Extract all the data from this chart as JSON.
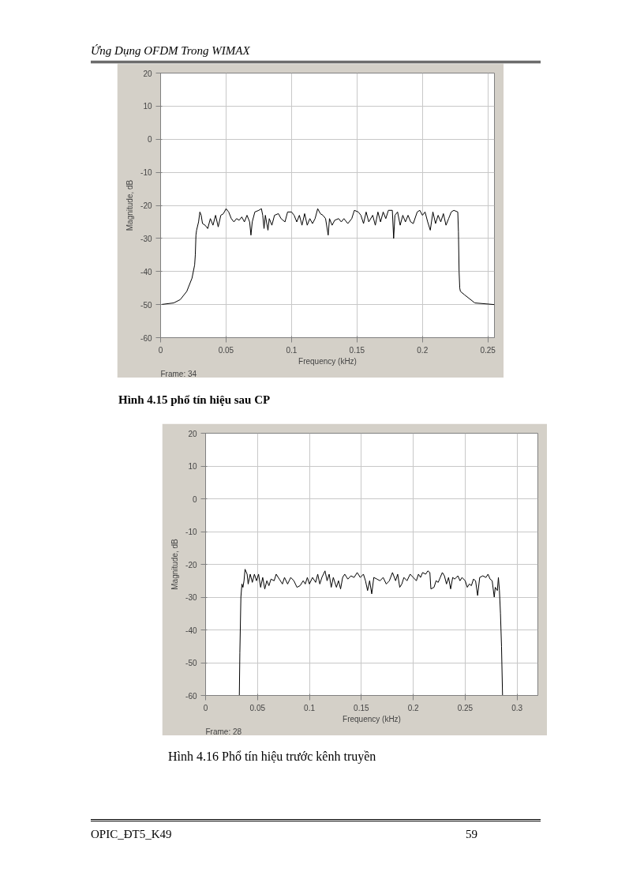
{
  "chart_data": [
    {
      "type": "line",
      "title": "Hình 4.15 phổ tín hiệu sau CP",
      "xlabel": "Frequency (kHz)",
      "ylabel": "Magnitude, dB",
      "annotations": [
        "Ứng Dụng OFDM Trong WIMAX",
        "Frame: 34"
      ],
      "xlim": [
        0,
        0.255
      ],
      "ylim": [
        -60,
        20
      ],
      "xticks": [
        0,
        0.05,
        0.1,
        0.15,
        0.2,
        0.25
      ],
      "yticks": [
        -60,
        -50,
        -40,
        -30,
        -20,
        -10,
        0,
        10,
        20
      ],
      "grid": true,
      "line_style": "solid",
      "series": [
        {
          "color": "#000000",
          "x": [
            0,
            0.01,
            0.015,
            0.02,
            0.024,
            0.026,
            0.0265,
            0.027,
            0.0275,
            0.029,
            0.03,
            0.031,
            0.032,
            0.034,
            0.036,
            0.038,
            0.04,
            0.042,
            0.044,
            0.046,
            0.048,
            0.05,
            0.052,
            0.054,
            0.056,
            0.058,
            0.06,
            0.062,
            0.064,
            0.066,
            0.068,
            0.069,
            0.07,
            0.072,
            0.075,
            0.077,
            0.078,
            0.079,
            0.08,
            0.082,
            0.083,
            0.085,
            0.087,
            0.09,
            0.092,
            0.095,
            0.097,
            0.1,
            0.102,
            0.104,
            0.106,
            0.108,
            0.11,
            0.112,
            0.114,
            0.116,
            0.118,
            0.12,
            0.122,
            0.124,
            0.126,
            0.128,
            0.129,
            0.131,
            0.133,
            0.136,
            0.138,
            0.14,
            0.143,
            0.146,
            0.148,
            0.151,
            0.153,
            0.155,
            0.157,
            0.159,
            0.162,
            0.164,
            0.166,
            0.168,
            0.17,
            0.172,
            0.174,
            0.177,
            0.178,
            0.179,
            0.181,
            0.183,
            0.185,
            0.187,
            0.189,
            0.191,
            0.193,
            0.196,
            0.198,
            0.2,
            0.202,
            0.204,
            0.206,
            0.208,
            0.21,
            0.212,
            0.214,
            0.216,
            0.218,
            0.22,
            0.222,
            0.224,
            0.227,
            0.2275,
            0.228,
            0.2285,
            0.229,
            0.232,
            0.24,
            0.255
          ],
          "values": [
            -50,
            -49.5,
            -48.5,
            -46,
            -42,
            -38,
            -35,
            -29,
            -27.5,
            -25,
            -22,
            -23,
            -25.5,
            -26,
            -27,
            -24,
            -26,
            -23,
            -26.5,
            -23,
            -22.5,
            -21,
            -22,
            -24,
            -25,
            -24,
            -24.5,
            -23.5,
            -25,
            -23,
            -25,
            -29,
            -25,
            -22,
            -21.5,
            -21,
            -23,
            -27,
            -23,
            -27.5,
            -24,
            -26,
            -23,
            -22.5,
            -24,
            -25,
            -22,
            -22,
            -23,
            -25,
            -23,
            -26,
            -22.5,
            -26,
            -24,
            -25.5,
            -24,
            -21,
            -22.5,
            -23,
            -24,
            -29,
            -24,
            -26,
            -24.5,
            -24,
            -25,
            -24,
            -25.5,
            -24,
            -21.5,
            -22,
            -23,
            -25.5,
            -22,
            -25,
            -23,
            -26,
            -22,
            -25,
            -22,
            -24,
            -21.5,
            -21.5,
            -30,
            -23,
            -22,
            -26,
            -23,
            -25,
            -23,
            -25,
            -25.5,
            -22,
            -21.5,
            -23,
            -22,
            -25,
            -27.5,
            -22,
            -25.5,
            -23,
            -25,
            -22.5,
            -26,
            -24,
            -22,
            -21.5,
            -22,
            -28,
            -40,
            -45,
            -46,
            -47,
            -49.5,
            -50
          ]
        }
      ]
    },
    {
      "type": "line",
      "title": "Hình 4.16 Phổ tín hiệu trước kênh truyền",
      "xlabel": "Frequency (kHz)",
      "ylabel": "Magnitude, dB",
      "annotations": [
        "Frame: 28",
        "OPIC_ĐT5_K49",
        "59"
      ],
      "xlim": [
        0,
        0.32
      ],
      "ylim": [
        -60,
        20
      ],
      "xticks": [
        0,
        0.05,
        0.1,
        0.15,
        0.2,
        0.25,
        0.3
      ],
      "yticks": [
        -60,
        -50,
        -40,
        -30,
        -20,
        -10,
        0,
        10,
        20
      ],
      "grid": true,
      "line_style": "solid",
      "series": [
        {
          "color": "#000000",
          "x": [
            0.0325,
            0.033,
            0.034,
            0.035,
            0.036,
            0.037,
            0.038,
            0.04,
            0.041,
            0.043,
            0.045,
            0.047,
            0.049,
            0.051,
            0.053,
            0.055,
            0.057,
            0.059,
            0.061,
            0.063,
            0.066,
            0.068,
            0.071,
            0.074,
            0.076,
            0.079,
            0.082,
            0.085,
            0.088,
            0.091,
            0.094,
            0.096,
            0.098,
            0.1,
            0.103,
            0.106,
            0.108,
            0.11,
            0.112,
            0.115,
            0.117,
            0.119,
            0.121,
            0.123,
            0.126,
            0.128,
            0.13,
            0.132,
            0.134,
            0.137,
            0.14,
            0.143,
            0.146,
            0.149,
            0.152,
            0.154,
            0.156,
            0.158,
            0.16,
            0.162,
            0.165,
            0.168,
            0.171,
            0.174,
            0.177,
            0.18,
            0.183,
            0.185,
            0.187,
            0.189,
            0.191,
            0.194,
            0.197,
            0.2,
            0.203,
            0.205,
            0.207,
            0.209,
            0.212,
            0.214,
            0.216,
            0.217,
            0.22,
            0.222,
            0.224,
            0.226,
            0.228,
            0.23,
            0.232,
            0.234,
            0.236,
            0.238,
            0.24,
            0.243,
            0.245,
            0.247,
            0.25,
            0.252,
            0.254,
            0.256,
            0.258,
            0.26,
            0.262,
            0.264,
            0.267,
            0.27,
            0.272,
            0.274,
            0.276,
            0.278,
            0.279,
            0.281,
            0.282,
            0.283,
            0.284,
            0.285,
            0.286
          ],
          "values": [
            -60,
            -47,
            -30,
            -26,
            -27,
            -25,
            -21.5,
            -23,
            -26,
            -23,
            -25.5,
            -23,
            -25,
            -23,
            -27,
            -24,
            -27.5,
            -25,
            -26.5,
            -24.5,
            -25,
            -23,
            -24.5,
            -26,
            -24,
            -26,
            -24,
            -25,
            -27,
            -26.5,
            -25,
            -26,
            -24,
            -26,
            -24,
            -25.5,
            -23,
            -26,
            -24,
            -22,
            -25,
            -23,
            -27,
            -24,
            -27,
            -25,
            -27.5,
            -24,
            -23,
            -24.5,
            -23.5,
            -24,
            -22.5,
            -24,
            -23,
            -25,
            -28,
            -25,
            -29,
            -24,
            -24.5,
            -25,
            -24,
            -26,
            -25,
            -22.5,
            -25,
            -23,
            -27,
            -26,
            -24,
            -25,
            -23,
            -24,
            -25,
            -23,
            -24,
            -22.5,
            -23,
            -22,
            -22.5,
            -27.5,
            -27,
            -25,
            -25.5,
            -24,
            -22.5,
            -23.5,
            -26,
            -24,
            -27.5,
            -24,
            -24.5,
            -23.5,
            -25,
            -24,
            -25,
            -27,
            -26,
            -26.5,
            -24.5,
            -25,
            -29.5,
            -24,
            -23.5,
            -24,
            -23,
            -24.5,
            -25,
            -30,
            -27,
            -28,
            -24,
            -28,
            -35,
            -45,
            -60
          ]
        }
      ]
    }
  ]
}
